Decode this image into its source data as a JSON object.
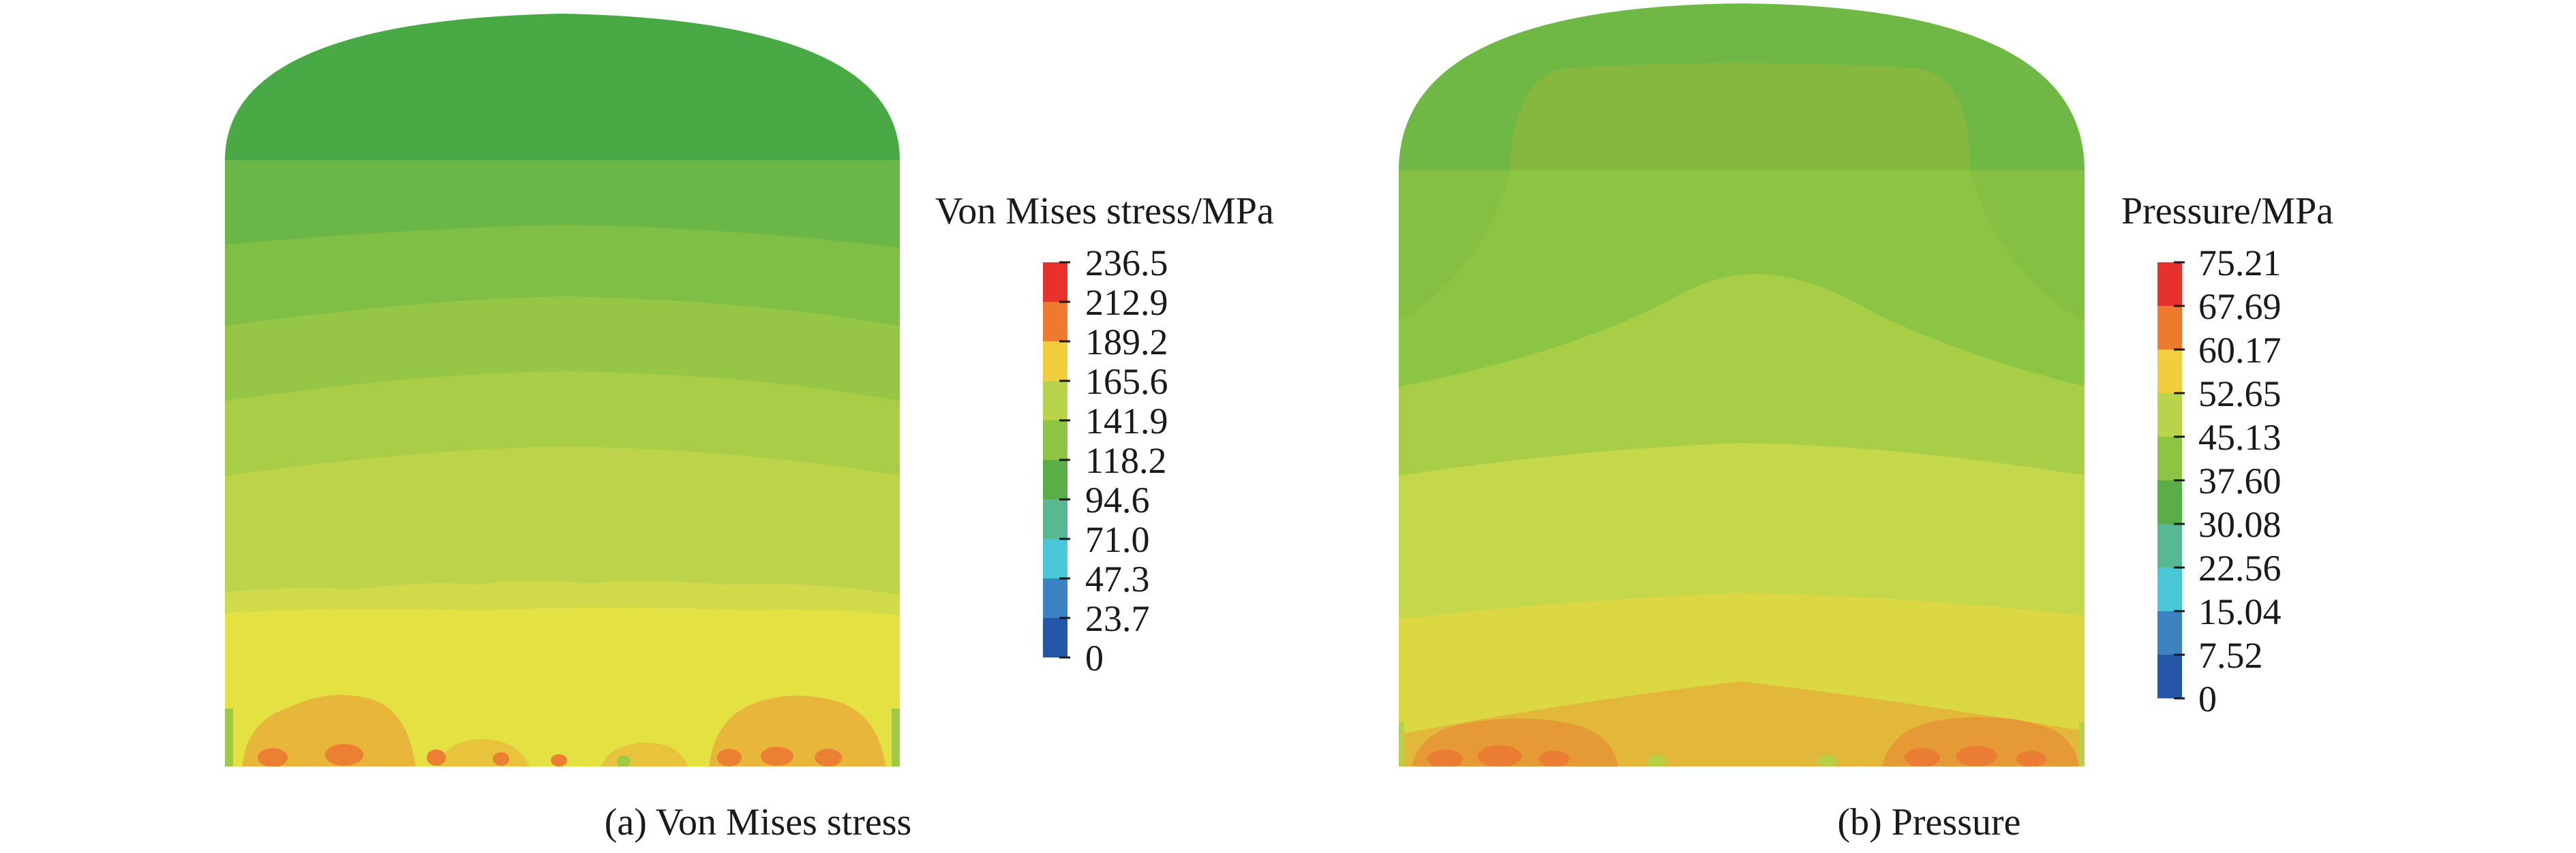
{
  "panels": [
    {
      "id": "a",
      "caption": "(a) Von Mises stress",
      "legend_title": "Von Mises stress/MPa",
      "legend_values": [
        "236.5",
        "212.9",
        "189.2",
        "165.6",
        "141.9",
        "118.2",
        "94.6",
        "71.0",
        "47.3",
        "23.7",
        "0"
      ],
      "legend_colors": [
        "#e8312b",
        "#ee7a2f",
        "#f2cd3e",
        "#b9d34b",
        "#8cc443",
        "#5aae47",
        "#57b891",
        "#49c6d8",
        "#3a82c2",
        "#2457a8"
      ]
    },
    {
      "id": "b",
      "caption": "(b) Pressure",
      "legend_title": "Pressure/MPa",
      "legend_values": [
        "75.21",
        "67.69",
        "60.17",
        "52.65",
        "45.13",
        "37.60",
        "30.08",
        "22.56",
        "15.04",
        "7.52",
        "0"
      ],
      "legend_colors": [
        "#e8312b",
        "#ee7a2f",
        "#f2cd3e",
        "#b9d34b",
        "#8cc443",
        "#5aae47",
        "#57b891",
        "#49c6d8",
        "#3a82c2",
        "#2457a8"
      ]
    }
  ],
  "contour_colors": {
    "dark_green": "#48a945",
    "green": "#70b846",
    "mid_green": "#8cc443",
    "yellow_green": "#a8cd46",
    "light_yg": "#c2d64c",
    "pale_yellow": "#d4da48",
    "yellow": "#e4e141",
    "gold": "#e2c03c",
    "orange": "#eaa436",
    "deep_orange": "#ec7a33"
  }
}
